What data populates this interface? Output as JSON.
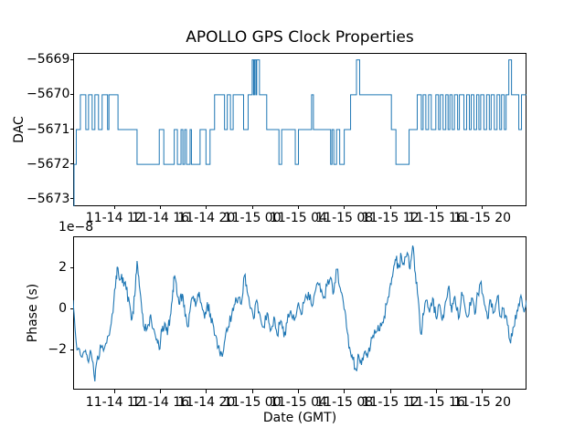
{
  "figure": {
    "background": "#ffffff",
    "line_color": "#1f77b4",
    "spine_color": "#000000",
    "text_color": "#000000"
  },
  "chart_data": [
    {
      "type": "line",
      "subplot": "dac",
      "title": "APOLLO GPS Clock Properties",
      "ylabel": "DAC",
      "draw_style": "steps-post",
      "grid": false,
      "legend": "none",
      "ylim": [
        -5673.2,
        -5668.8
      ],
      "yticks": [
        -5669,
        -5670,
        -5671,
        -5672,
        -5673
      ],
      "ytick_labels": [
        "−5669",
        "−5670",
        "−5671",
        "−5672",
        "−5673"
      ],
      "xticks": {
        "fractions": [
          0.0913,
          0.1927,
          0.2941,
          0.3955,
          0.4969,
          0.5983,
          0.6997,
          0.8011,
          0.9025
        ],
        "labels": [
          "11-14 12",
          "11-14 16",
          "11-14 20",
          "11-15 00",
          "11-15 04",
          "11-15 08",
          "11-15 12",
          "11-15 16",
          "11-15 20"
        ]
      },
      "steps_x_value": [
        [
          0.0,
          -5673.2
        ],
        [
          0.002,
          -5672
        ],
        [
          0.007,
          -5671
        ],
        [
          0.016,
          -5670
        ],
        [
          0.028,
          -5671
        ],
        [
          0.034,
          -5670
        ],
        [
          0.042,
          -5671
        ],
        [
          0.048,
          -5670
        ],
        [
          0.056,
          -5671
        ],
        [
          0.064,
          -5670
        ],
        [
          0.076,
          -5671
        ],
        [
          0.079,
          -5670
        ],
        [
          0.099,
          -5671
        ],
        [
          0.141,
          -5672
        ],
        [
          0.19,
          -5671
        ],
        [
          0.2,
          -5672
        ],
        [
          0.223,
          -5671
        ],
        [
          0.23,
          -5672
        ],
        [
          0.238,
          -5671
        ],
        [
          0.242,
          -5672
        ],
        [
          0.246,
          -5671
        ],
        [
          0.25,
          -5672
        ],
        [
          0.258,
          -5671
        ],
        [
          0.261,
          -5672
        ],
        [
          0.28,
          -5671
        ],
        [
          0.293,
          -5672
        ],
        [
          0.302,
          -5671
        ],
        [
          0.312,
          -5670
        ],
        [
          0.334,
          -5671
        ],
        [
          0.34,
          -5670
        ],
        [
          0.347,
          -5671
        ],
        [
          0.353,
          -5670
        ],
        [
          0.376,
          -5671
        ],
        [
          0.386,
          -5670
        ],
        [
          0.395,
          -5669
        ],
        [
          0.398,
          -5670
        ],
        [
          0.4,
          -5669
        ],
        [
          0.403,
          -5670
        ],
        [
          0.405,
          -5669
        ],
        [
          0.411,
          -5670
        ],
        [
          0.427,
          -5671
        ],
        [
          0.454,
          -5672
        ],
        [
          0.46,
          -5671
        ],
        [
          0.49,
          -5672
        ],
        [
          0.497,
          -5671
        ],
        [
          0.526,
          -5670
        ],
        [
          0.53,
          -5671
        ],
        [
          0.568,
          -5672
        ],
        [
          0.571,
          -5671
        ],
        [
          0.575,
          -5672
        ],
        [
          0.581,
          -5671
        ],
        [
          0.588,
          -5672
        ],
        [
          0.598,
          -5671
        ],
        [
          0.612,
          -5670
        ],
        [
          0.625,
          -5669
        ],
        [
          0.632,
          -5670
        ],
        [
          0.702,
          -5671
        ],
        [
          0.712,
          -5672
        ],
        [
          0.741,
          -5671
        ],
        [
          0.759,
          -5670
        ],
        [
          0.768,
          -5671
        ],
        [
          0.772,
          -5670
        ],
        [
          0.778,
          -5671
        ],
        [
          0.784,
          -5670
        ],
        [
          0.79,
          -5671
        ],
        [
          0.8,
          -5670
        ],
        [
          0.806,
          -5671
        ],
        [
          0.81,
          -5670
        ],
        [
          0.816,
          -5671
        ],
        [
          0.822,
          -5670
        ],
        [
          0.827,
          -5671
        ],
        [
          0.831,
          -5670
        ],
        [
          0.836,
          -5671
        ],
        [
          0.841,
          -5670
        ],
        [
          0.848,
          -5671
        ],
        [
          0.852,
          -5670
        ],
        [
          0.862,
          -5671
        ],
        [
          0.868,
          -5670
        ],
        [
          0.874,
          -5671
        ],
        [
          0.878,
          -5670
        ],
        [
          0.884,
          -5671
        ],
        [
          0.89,
          -5670
        ],
        [
          0.895,
          -5671
        ],
        [
          0.899,
          -5670
        ],
        [
          0.906,
          -5671
        ],
        [
          0.912,
          -5670
        ],
        [
          0.918,
          -5671
        ],
        [
          0.922,
          -5670
        ],
        [
          0.929,
          -5671
        ],
        [
          0.935,
          -5670
        ],
        [
          0.941,
          -5671
        ],
        [
          0.945,
          -5670
        ],
        [
          0.951,
          -5671
        ],
        [
          0.955,
          -5670
        ],
        [
          0.961,
          -5669
        ],
        [
          0.967,
          -5670
        ],
        [
          0.983,
          -5671
        ],
        [
          0.989,
          -5670
        ],
        [
          1.0,
          -5670
        ]
      ]
    },
    {
      "type": "line",
      "subplot": "phase",
      "ylabel": "Phase (s)",
      "xlabel": "Date (GMT)",
      "offset_text": "1e−8",
      "grid": false,
      "legend": "none",
      "y_unit_scale": 1e-08,
      "ylim": [
        -3.95,
        3.5
      ],
      "yticks": [
        2,
        0,
        -2
      ],
      "ytick_labels": [
        "2",
        "0",
        "−2"
      ],
      "xticks": {
        "fractions": [
          0.0913,
          0.1927,
          0.2941,
          0.3955,
          0.4969,
          0.5983,
          0.6997,
          0.8011,
          0.9025
        ],
        "labels": [
          "11-14 12",
          "11-14 16",
          "11-14 20",
          "11-15 00",
          "11-15 04",
          "11-15 08",
          "11-15 12",
          "11-15 16",
          "11-15 20"
        ]
      },
      "anchors_x_value": [
        [
          0.0,
          0.4
        ],
        [
          0.004,
          -0.9
        ],
        [
          0.01,
          -2.0
        ],
        [
          0.018,
          -2.35
        ],
        [
          0.026,
          -2.1
        ],
        [
          0.032,
          -2.5
        ],
        [
          0.04,
          -2.2
        ],
        [
          0.048,
          -3.55
        ],
        [
          0.054,
          -2.3
        ],
        [
          0.062,
          -1.9
        ],
        [
          0.072,
          -1.7
        ],
        [
          0.08,
          -1.3
        ],
        [
          0.088,
          -0.2
        ],
        [
          0.095,
          1.6
        ],
        [
          0.099,
          1.95
        ],
        [
          0.104,
          1.4
        ],
        [
          0.11,
          1.5
        ],
        [
          0.117,
          0.9
        ],
        [
          0.124,
          0.3
        ],
        [
          0.13,
          -0.5
        ],
        [
          0.136,
          0.6
        ],
        [
          0.141,
          2.3
        ],
        [
          0.146,
          1.1
        ],
        [
          0.152,
          -0.2
        ],
        [
          0.158,
          -1.1
        ],
        [
          0.165,
          -0.8
        ],
        [
          0.171,
          -0.3
        ],
        [
          0.178,
          -1.0
        ],
        [
          0.185,
          -1.5
        ],
        [
          0.19,
          -2.0
        ],
        [
          0.196,
          -1.1
        ],
        [
          0.202,
          -0.7
        ],
        [
          0.208,
          -1.3
        ],
        [
          0.214,
          -0.4
        ],
        [
          0.22,
          0.9
        ],
        [
          0.224,
          1.6
        ],
        [
          0.229,
          0.7
        ],
        [
          0.235,
          0.2
        ],
        [
          0.241,
          0.7
        ],
        [
          0.247,
          -0.4
        ],
        [
          0.253,
          -0.9
        ],
        [
          0.259,
          0.1
        ],
        [
          0.265,
          0.6
        ],
        [
          0.272,
          0.3
        ],
        [
          0.278,
          0.8
        ],
        [
          0.284,
          0.1
        ],
        [
          0.29,
          -0.5
        ],
        [
          0.296,
          0.3
        ],
        [
          0.303,
          -0.3
        ],
        [
          0.31,
          -0.9
        ],
        [
          0.317,
          -1.5
        ],
        [
          0.323,
          -2.1
        ],
        [
          0.329,
          -2.35
        ],
        [
          0.335,
          -1.5
        ],
        [
          0.342,
          -0.9
        ],
        [
          0.35,
          -0.3
        ],
        [
          0.357,
          0.2
        ],
        [
          0.364,
          0.5
        ],
        [
          0.371,
          0.2
        ],
        [
          0.378,
          1.6
        ],
        [
          0.384,
          0.8
        ],
        [
          0.391,
          0.0
        ],
        [
          0.398,
          -0.5
        ],
        [
          0.405,
          0.4
        ],
        [
          0.412,
          -0.3
        ],
        [
          0.42,
          -0.9
        ],
        [
          0.428,
          -0.2
        ],
        [
          0.435,
          -1.1
        ],
        [
          0.443,
          -0.4
        ],
        [
          0.45,
          -1.3
        ],
        [
          0.458,
          -0.6
        ],
        [
          0.465,
          -1.4
        ],
        [
          0.472,
          -0.7
        ],
        [
          0.48,
          -0.1
        ],
        [
          0.488,
          -0.6
        ],
        [
          0.495,
          0.1
        ],
        [
          0.503,
          -0.3
        ],
        [
          0.511,
          0.4
        ],
        [
          0.519,
          0.8
        ],
        [
          0.527,
          0.1
        ],
        [
          0.535,
          0.9
        ],
        [
          0.544,
          1.2
        ],
        [
          0.552,
          0.5
        ],
        [
          0.56,
          1.1
        ],
        [
          0.568,
          1.5
        ],
        [
          0.575,
          0.8
        ],
        [
          0.582,
          1.9
        ],
        [
          0.589,
          1.0
        ],
        [
          0.596,
          0.3
        ],
        [
          0.603,
          -0.9
        ],
        [
          0.61,
          -1.9
        ],
        [
          0.617,
          -2.5
        ],
        [
          0.624,
          -3.0
        ],
        [
          0.63,
          -2.3
        ],
        [
          0.636,
          -2.75
        ],
        [
          0.643,
          -2.1
        ],
        [
          0.649,
          -2.4
        ],
        [
          0.656,
          -1.8
        ],
        [
          0.663,
          -1.4
        ],
        [
          0.671,
          -1.1
        ],
        [
          0.678,
          -0.7
        ],
        [
          0.686,
          -0.4
        ],
        [
          0.693,
          0.3
        ],
        [
          0.7,
          1.2
        ],
        [
          0.706,
          1.8
        ],
        [
          0.712,
          2.35
        ],
        [
          0.718,
          2.0
        ],
        [
          0.724,
          2.55
        ],
        [
          0.73,
          2.1
        ],
        [
          0.737,
          2.7
        ],
        [
          0.743,
          1.9
        ],
        [
          0.749,
          3.05
        ],
        [
          0.755,
          1.7
        ],
        [
          0.761,
          0.5
        ],
        [
          0.767,
          -1.25
        ],
        [
          0.773,
          -0.3
        ],
        [
          0.779,
          0.4
        ],
        [
          0.786,
          -0.2
        ],
        [
          0.793,
          0.5
        ],
        [
          0.8,
          -0.4
        ],
        [
          0.807,
          0.2
        ],
        [
          0.814,
          -0.6
        ],
        [
          0.821,
          0.3
        ],
        [
          0.829,
          1.1
        ],
        [
          0.835,
          -0.2
        ],
        [
          0.842,
          0.6
        ],
        [
          0.85,
          -0.5
        ],
        [
          0.857,
          0.8
        ],
        [
          0.864,
          0.1
        ],
        [
          0.871,
          -0.4
        ],
        [
          0.879,
          0.5
        ],
        [
          0.886,
          -0.3
        ],
        [
          0.893,
          0.7
        ],
        [
          0.9,
          1.3
        ],
        [
          0.907,
          0.2
        ],
        [
          0.914,
          -0.5
        ],
        [
          0.921,
          0.4
        ],
        [
          0.928,
          -0.2
        ],
        [
          0.936,
          0.6
        ],
        [
          0.943,
          -0.4
        ],
        [
          0.95,
          0.0
        ],
        [
          0.958,
          -0.8
        ],
        [
          0.965,
          -1.7
        ],
        [
          0.972,
          -0.9
        ],
        [
          0.979,
          -0.1
        ],
        [
          0.986,
          0.5
        ],
        [
          0.993,
          0.0
        ],
        [
          1.0,
          0.4
        ]
      ],
      "noise_texture": {
        "seed": 1114,
        "amplitude": 0.3,
        "subdivisions": 4
      }
    }
  ]
}
